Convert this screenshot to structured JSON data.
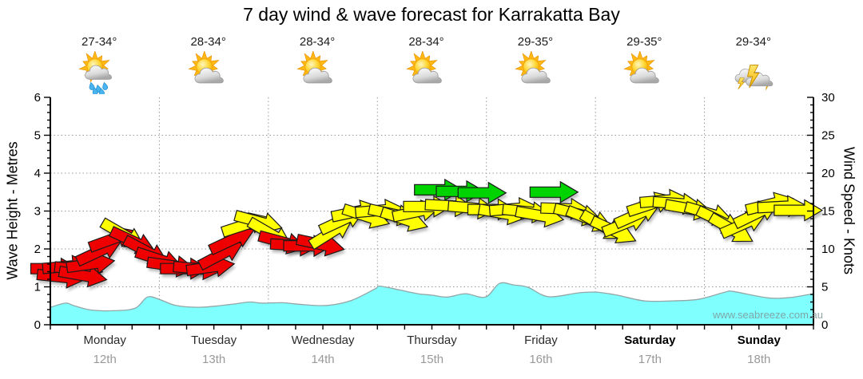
{
  "title": "7 day wind & wave forecast for Karrakatta Bay",
  "watermark": "www.seabreeze.com.au",
  "forecast": {
    "temps": [
      "27-34°",
      "28-34°",
      "28-34°",
      "28-34°",
      "29-35°",
      "29-35°",
      "29-34°"
    ],
    "icons": [
      "sun-shower",
      "partly-sunny",
      "partly-sunny",
      "partly-sunny",
      "partly-sunny",
      "partly-sunny",
      "thunderstorm"
    ]
  },
  "axes": {
    "left": {
      "label": "Wave Height - Metres",
      "ticks": [
        "6",
        "5",
        "4",
        "3",
        "2",
        "1",
        "0"
      ],
      "range": [
        0,
        6
      ]
    },
    "right": {
      "label": "Wind Speed - Knots",
      "ticks": [
        "30",
        "25",
        "20",
        "15",
        "10",
        "5",
        "0"
      ],
      "range": [
        0,
        30
      ]
    },
    "days": [
      {
        "name": "Monday",
        "date": "12th",
        "weekend": false
      },
      {
        "name": "Tuesday",
        "date": "13th",
        "weekend": false
      },
      {
        "name": "Wednesday",
        "date": "14th",
        "weekend": false
      },
      {
        "name": "Thursday",
        "date": "15th",
        "weekend": false
      },
      {
        "name": "Friday",
        "date": "16th",
        "weekend": false
      },
      {
        "name": "Saturday",
        "date": "17th",
        "weekend": true
      },
      {
        "name": "Sunday",
        "date": "18th",
        "weekend": true
      }
    ]
  },
  "colors": {
    "wave_fill": "#80FFFF",
    "wave_edge": "#93A6A6",
    "arrow_red": "#EE0000",
    "arrow_yellow": "#FFFF00",
    "arrow_green": "#00D400",
    "arrow_outline": "#1a1a1a",
    "grid": "#9a9a9a",
    "axis": "#000000"
  },
  "chart_data": {
    "type": "area",
    "title": "7 day wind & wave forecast for Karrakatta Bay",
    "x_unit": "days (Mon 12th - Sun 18th)",
    "grid": "dotted horizontal at 1-5 m, dotted vertical at day boundaries",
    "wave_height_m": {
      "name": "Wave Height (Metres)",
      "axis": "left",
      "ylim": [
        0,
        6
      ],
      "x_day": [
        0,
        0.14,
        0.22,
        0.37,
        0.59,
        0.78,
        0.89,
        1.0,
        1.15,
        1.35,
        1.54,
        1.69,
        1.83,
        1.94,
        2.13,
        2.32,
        2.54,
        2.76,
        2.98,
        3.02,
        3.2,
        3.37,
        3.5,
        3.64,
        3.81,
        3.99,
        4.12,
        4.25,
        4.38,
        4.57,
        4.84,
        5.01,
        5.2,
        5.45,
        5.7,
        5.94,
        6.19,
        6.26,
        6.58,
        6.79,
        7.0
      ],
      "values": [
        0.46,
        0.57,
        0.5,
        0.39,
        0.37,
        0.44,
        0.73,
        0.67,
        0.51,
        0.46,
        0.5,
        0.55,
        0.6,
        0.57,
        0.58,
        0.53,
        0.51,
        0.64,
        0.95,
        1.02,
        0.92,
        0.82,
        0.78,
        0.73,
        0.82,
        0.73,
        1.09,
        1.05,
        0.99,
        0.74,
        0.84,
        0.86,
        0.78,
        0.63,
        0.63,
        0.67,
        0.86,
        0.88,
        0.71,
        0.72,
        0.82
      ]
    },
    "wind_knots": {
      "name": "Wind Speed (Knots), arrows show direction",
      "axis": "right",
      "ylim": [
        0,
        30
      ],
      "point_format": [
        "day",
        "knots",
        "angle_deg",
        "color"
      ],
      "points": [
        [
          0.04,
          7.4,
          0,
          "red"
        ],
        [
          0.1,
          6.3,
          6,
          "red"
        ],
        [
          0.15,
          7.7,
          -5,
          "red"
        ],
        [
          0.26,
          7.3,
          6,
          "red"
        ],
        [
          0.3,
          6.5,
          10,
          "red"
        ],
        [
          0.37,
          8.0,
          -8,
          "red"
        ],
        [
          0.45,
          9.7,
          -25,
          "red"
        ],
        [
          0.57,
          11.3,
          -20,
          "red"
        ],
        [
          0.67,
          11.9,
          30,
          "yellow"
        ],
        [
          0.76,
          11.0,
          25,
          "red"
        ],
        [
          0.88,
          9.7,
          28,
          "red"
        ],
        [
          1.0,
          8.6,
          18,
          "red"
        ],
        [
          1.11,
          7.8,
          8,
          "red"
        ],
        [
          1.23,
          7.4,
          0,
          "red"
        ],
        [
          1.35,
          7.4,
          5,
          "red"
        ],
        [
          1.47,
          7.6,
          -8,
          "red"
        ],
        [
          1.57,
          9.3,
          -28,
          "red"
        ],
        [
          1.67,
          11.2,
          -25,
          "red"
        ],
        [
          1.79,
          13.2,
          -18,
          "yellow"
        ],
        [
          1.91,
          13.6,
          15,
          "yellow"
        ],
        [
          2.02,
          12.0,
          30,
          "yellow"
        ],
        [
          2.13,
          10.9,
          15,
          "red"
        ],
        [
          2.24,
          10.5,
          3,
          "red"
        ],
        [
          2.36,
          10.4,
          0,
          "red"
        ],
        [
          2.48,
          10.6,
          12,
          "red"
        ],
        [
          2.58,
          12.2,
          -32,
          "yellow"
        ],
        [
          2.68,
          13.8,
          -25,
          "yellow"
        ],
        [
          2.8,
          14.9,
          -12,
          "yellow"
        ],
        [
          2.9,
          14.3,
          18,
          "yellow"
        ],
        [
          3.02,
          15.1,
          -5,
          "yellow"
        ],
        [
          3.14,
          14.6,
          12,
          "yellow"
        ],
        [
          3.25,
          13.9,
          18,
          "yellow"
        ],
        [
          3.36,
          14.9,
          -12,
          "yellow"
        ],
        [
          3.46,
          15.6,
          0,
          "yellow"
        ],
        [
          3.56,
          17.8,
          0,
          "green"
        ],
        [
          3.66,
          15.7,
          3,
          "yellow"
        ],
        [
          3.76,
          17.6,
          0,
          "green"
        ],
        [
          3.87,
          15.4,
          5,
          "yellow"
        ],
        [
          3.96,
          17.4,
          0,
          "green"
        ],
        [
          4.05,
          15.2,
          0,
          "yellow"
        ],
        [
          4.15,
          14.7,
          10,
          "yellow"
        ],
        [
          4.25,
          15.3,
          -5,
          "yellow"
        ],
        [
          4.37,
          14.9,
          6,
          "yellow"
        ],
        [
          4.49,
          14.4,
          10,
          "yellow"
        ],
        [
          4.62,
          17.5,
          0,
          "green"
        ],
        [
          4.72,
          15.3,
          2,
          "yellow"
        ],
        [
          4.84,
          14.6,
          14,
          "yellow"
        ],
        [
          4.95,
          13.9,
          22,
          "yellow"
        ],
        [
          5.07,
          13.0,
          30,
          "yellow"
        ],
        [
          5.17,
          12.4,
          25,
          "yellow"
        ],
        [
          5.28,
          13.4,
          -22,
          "yellow"
        ],
        [
          5.39,
          14.6,
          -24,
          "yellow"
        ],
        [
          5.51,
          15.9,
          -18,
          "yellow"
        ],
        [
          5.63,
          16.4,
          -5,
          "yellow"
        ],
        [
          5.75,
          16.0,
          4,
          "yellow"
        ],
        [
          5.86,
          15.3,
          10,
          "yellow"
        ],
        [
          6.04,
          14.7,
          16,
          "yellow"
        ],
        [
          6.14,
          13.7,
          26,
          "yellow"
        ],
        [
          6.25,
          12.6,
          30,
          "yellow"
        ],
        [
          6.36,
          13.3,
          -24,
          "yellow"
        ],
        [
          6.48,
          14.7,
          -26,
          "yellow"
        ],
        [
          6.6,
          15.9,
          -14,
          "yellow"
        ],
        [
          6.71,
          15.6,
          -3,
          "yellow"
        ],
        [
          6.86,
          15.1,
          0,
          "yellow"
        ]
      ]
    }
  }
}
